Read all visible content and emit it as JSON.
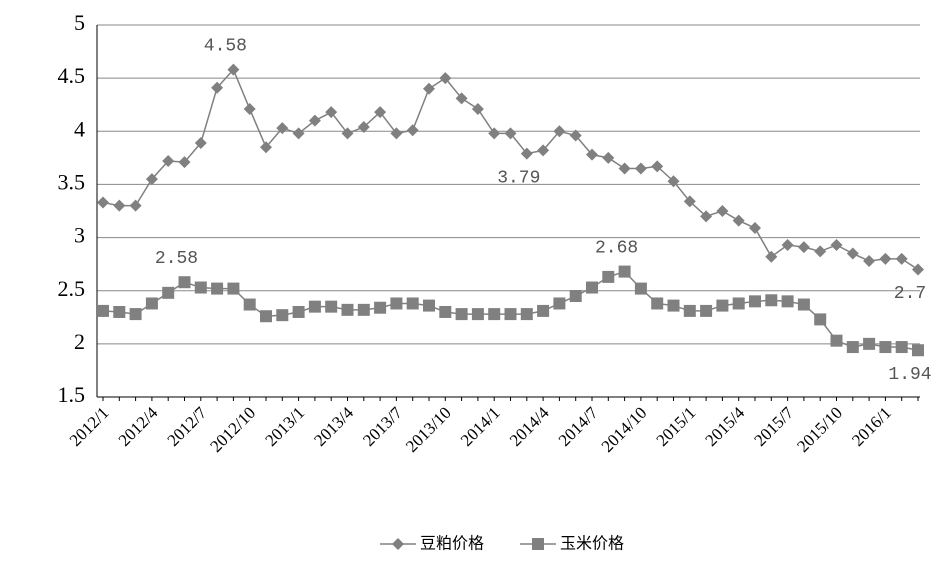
{
  "chart_data": {
    "type": "line",
    "categories": [
      "2012/1",
      null,
      null,
      "2012/4",
      null,
      null,
      "2012/7",
      null,
      null,
      "2012/10",
      null,
      null,
      "2013/1",
      null,
      null,
      "2013/4",
      null,
      null,
      "2013/7",
      null,
      null,
      "2013/10",
      null,
      null,
      "2014/1",
      null,
      null,
      "2014/4",
      null,
      null,
      "2014/7",
      null,
      null,
      "2014/10",
      null,
      null,
      "2015/1",
      null,
      null,
      "2015/4",
      null,
      null,
      "2015/7",
      null,
      null,
      "2015/10",
      null,
      null,
      "2016/1",
      null,
      null
    ],
    "series": [
      {
        "name": "豆粕价格",
        "color": "#808080",
        "marker": "diamond",
        "labeled": [
          8,
          26,
          50
        ],
        "values": [
          3.33,
          3.3,
          3.3,
          3.55,
          3.72,
          3.71,
          3.89,
          4.41,
          4.58,
          4.21,
          3.85,
          4.03,
          3.98,
          4.1,
          4.18,
          3.98,
          4.04,
          4.18,
          3.98,
          4.01,
          4.4,
          4.5,
          4.31,
          4.21,
          3.98,
          3.98,
          3.79,
          3.82,
          4.0,
          3.96,
          3.78,
          3.75,
          3.65,
          3.65,
          3.67,
          3.53,
          3.34,
          3.2,
          3.25,
          3.16,
          3.09,
          2.82,
          2.93,
          2.91,
          2.87,
          2.93,
          2.85,
          2.78,
          2.8,
          2.8,
          2.7
        ]
      },
      {
        "name": "玉米价格",
        "color": "#808080",
        "marker": "square",
        "labeled": [
          5,
          32,
          50
        ],
        "values": [
          2.31,
          2.3,
          2.28,
          2.38,
          2.48,
          2.58,
          2.53,
          2.52,
          2.52,
          2.37,
          2.26,
          2.27,
          2.3,
          2.35,
          2.35,
          2.32,
          2.32,
          2.34,
          2.38,
          2.38,
          2.36,
          2.3,
          2.28,
          2.28,
          2.28,
          2.28,
          2.28,
          2.31,
          2.38,
          2.45,
          2.53,
          2.63,
          2.68,
          2.52,
          2.38,
          2.36,
          2.31,
          2.31,
          2.36,
          2.38,
          2.4,
          2.41,
          2.4,
          2.37,
          2.23,
          2.03,
          1.97,
          2.0,
          1.97,
          1.97,
          1.94
        ]
      }
    ],
    "ylim": [
      1.5,
      5
    ],
    "yticks": [
      1.5,
      2,
      2.5,
      3,
      3.5,
      4,
      4.5,
      5
    ],
    "grid": true,
    "legend": "bottom"
  }
}
